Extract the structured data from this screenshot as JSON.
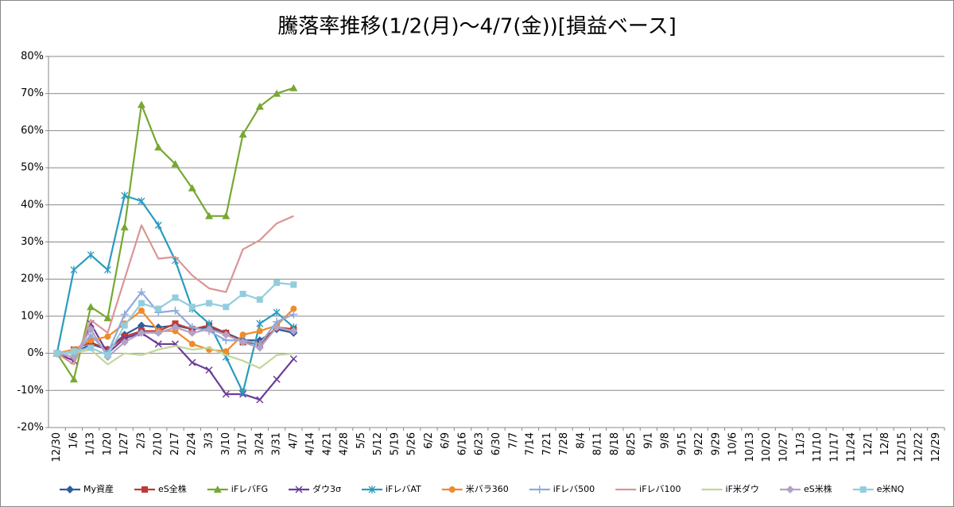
{
  "chart_data": {
    "type": "line",
    "title": "騰落率推移(1/2(月)～4/7(金))[損益ベース]",
    "categories": [
      "12/30",
      "1/6",
      "1/13",
      "1/20",
      "1/27",
      "2/3",
      "2/10",
      "2/17",
      "2/24",
      "3/3",
      "3/10",
      "3/17",
      "3/24",
      "3/31",
      "4/7",
      "4/14",
      "4/21",
      "4/28",
      "5/5",
      "5/12",
      "5/19",
      "5/26",
      "6/2",
      "6/9",
      "6/16",
      "6/23",
      "6/30",
      "7/7",
      "7/14",
      "7/21",
      "7/28",
      "8/4",
      "8/11",
      "8/18",
      "8/25",
      "9/1",
      "9/8",
      "9/15",
      "9/22",
      "9/29",
      "10/6",
      "10/13",
      "10/20",
      "10/27",
      "11/3",
      "11/10",
      "11/17",
      "11/24",
      "12/1",
      "12/8",
      "12/15",
      "12/22",
      "12/29"
    ],
    "ylim": [
      -20,
      80
    ],
    "yticks": [
      {
        "value": -20,
        "label": "-20%"
      },
      {
        "value": -10,
        "label": "-10%"
      },
      {
        "value": 0,
        "label": "0%"
      },
      {
        "value": 10,
        "label": "10%"
      },
      {
        "value": 20,
        "label": "20%"
      },
      {
        "value": 30,
        "label": "30%"
      },
      {
        "value": 40,
        "label": "40%"
      },
      {
        "value": 50,
        "label": "50%"
      },
      {
        "value": 60,
        "label": "60%"
      },
      {
        "value": 70,
        "label": "70%"
      },
      {
        "value": 80,
        "label": "80%"
      }
    ],
    "grid": true,
    "legend": "bottom",
    "series": [
      {
        "name": "My資産",
        "color": "#2e5c9e",
        "marker": "diamond",
        "values": [
          0,
          0,
          2.5,
          1,
          5,
          7.5,
          7,
          7.5,
          6.5,
          7,
          5.5,
          3.5,
          3.5,
          6.5,
          5.5,
          null,
          null,
          null,
          null,
          null,
          null,
          null,
          null,
          null,
          null,
          null,
          null,
          null,
          null,
          null,
          null,
          null,
          null,
          null,
          null,
          null,
          null,
          null,
          null,
          null,
          null,
          null,
          null,
          null,
          null,
          null,
          null,
          null,
          null,
          null,
          null,
          null,
          null
        ]
      },
      {
        "name": "eS全株",
        "color": "#be3a34",
        "marker": "square",
        "values": [
          0,
          1,
          3,
          1,
          4.5,
          6,
          6,
          8,
          6.5,
          7.5,
          5.5,
          3,
          2.5,
          7,
          6.5,
          null,
          null,
          null,
          null,
          null,
          null,
          null,
          null,
          null,
          null,
          null,
          null,
          null,
          null,
          null,
          null,
          null,
          null,
          null,
          null,
          null,
          null,
          null,
          null,
          null,
          null,
          null,
          null,
          null,
          null,
          null,
          null,
          null,
          null,
          null,
          null,
          null,
          null
        ]
      },
      {
        "name": "iFレバFG",
        "color": "#77a832",
        "marker": "triangle",
        "values": [
          0,
          -7,
          12.5,
          9.5,
          34,
          67,
          55.5,
          51,
          44.5,
          37,
          37,
          59,
          66.5,
          70,
          71.5,
          null,
          null,
          null,
          null,
          null,
          null,
          null,
          null,
          null,
          null,
          null,
          null,
          null,
          null,
          null,
          null,
          null,
          null,
          null,
          null,
          null,
          null,
          null,
          null,
          null,
          null,
          null,
          null,
          null,
          null,
          null,
          null,
          null,
          null,
          null,
          null,
          null,
          null
        ]
      },
      {
        "name": "ダウ3σ",
        "color": "#6b3d99",
        "marker": "x",
        "values": [
          0,
          -2,
          8,
          0,
          4,
          5.5,
          2.5,
          2.5,
          -2.5,
          -4.5,
          -11,
          -11,
          -12.5,
          -7,
          -1.5,
          null,
          null,
          null,
          null,
          null,
          null,
          null,
          null,
          null,
          null,
          null,
          null,
          null,
          null,
          null,
          null,
          null,
          null,
          null,
          null,
          null,
          null,
          null,
          null,
          null,
          null,
          null,
          null,
          null,
          null,
          null,
          null,
          null,
          null,
          null,
          null,
          null,
          null
        ]
      },
      {
        "name": "iFレバAT",
        "color": "#2a9bbd",
        "marker": "asterisk",
        "values": [
          0,
          22.5,
          26.5,
          22.5,
          42.5,
          41,
          34.5,
          25,
          12,
          8,
          -1,
          -10.5,
          8,
          11,
          7,
          null,
          null,
          null,
          null,
          null,
          null,
          null,
          null,
          null,
          null,
          null,
          null,
          null,
          null,
          null,
          null,
          null,
          null,
          null,
          null,
          null,
          null,
          null,
          null,
          null,
          null,
          null,
          null,
          null,
          null,
          null,
          null,
          null,
          null,
          null,
          null,
          null,
          null
        ]
      },
      {
        "name": "米バラ360",
        "color": "#f08a2a",
        "marker": "circle",
        "values": [
          0,
          1,
          3.5,
          4.5,
          8,
          11.5,
          6,
          6,
          2.5,
          1,
          0.5,
          5,
          6,
          7.5,
          12,
          null,
          null,
          null,
          null,
          null,
          null,
          null,
          null,
          null,
          null,
          null,
          null,
          null,
          null,
          null,
          null,
          null,
          null,
          null,
          null,
          null,
          null,
          null,
          null,
          null,
          null,
          null,
          null,
          null,
          null,
          null,
          null,
          null,
          null,
          null,
          null,
          null,
          null
        ]
      },
      {
        "name": "iFレバ500",
        "color": "#8faadc",
        "marker": "plus",
        "values": [
          0,
          -1,
          5,
          0,
          10.5,
          16.5,
          11,
          11.5,
          7,
          6,
          3.5,
          3.5,
          2.5,
          8.5,
          10.5,
          null,
          null,
          null,
          null,
          null,
          null,
          null,
          null,
          null,
          null,
          null,
          null,
          null,
          null,
          null,
          null,
          null,
          null,
          null,
          null,
          null,
          null,
          null,
          null,
          null,
          null,
          null,
          null,
          null,
          null,
          null,
          null,
          null,
          null,
          null,
          null,
          null,
          null
        ]
      },
      {
        "name": "iFレバ100",
        "color": "#d99694",
        "marker": "none",
        "values": [
          0,
          -3,
          9,
          5.5,
          20,
          34.5,
          25.5,
          26,
          21,
          17.5,
          16.5,
          28,
          30.5,
          35,
          37,
          null,
          null,
          null,
          null,
          null,
          null,
          null,
          null,
          null,
          null,
          null,
          null,
          null,
          null,
          null,
          null,
          null,
          null,
          null,
          null,
          null,
          null,
          null,
          null,
          null,
          null,
          null,
          null,
          null,
          null,
          null,
          null,
          null,
          null,
          null,
          null,
          null,
          null
        ]
      },
      {
        "name": "iF米ダウ",
        "color": "#c3d69b",
        "marker": "none",
        "values": [
          0,
          0,
          1,
          -3,
          0,
          -0.5,
          1,
          2,
          1,
          1.5,
          -0.5,
          -2,
          -4,
          -0.5,
          0,
          null,
          null,
          null,
          null,
          null,
          null,
          null,
          null,
          null,
          null,
          null,
          null,
          null,
          null,
          null,
          null,
          null,
          null,
          null,
          null,
          null,
          null,
          null,
          null,
          null,
          null,
          null,
          null,
          null,
          null,
          null,
          null,
          null,
          null,
          null,
          null,
          null,
          null
        ]
      },
      {
        "name": "eS米株",
        "color": "#b3a2c7",
        "marker": "diamond",
        "values": [
          0,
          -1,
          6.5,
          -1,
          3,
          5.5,
          5.5,
          7,
          5.5,
          6.5,
          5,
          3,
          1.5,
          7,
          6,
          null,
          null,
          null,
          null,
          null,
          null,
          null,
          null,
          null,
          null,
          null,
          null,
          null,
          null,
          null,
          null,
          null,
          null,
          null,
          null,
          null,
          null,
          null,
          null,
          null,
          null,
          null,
          null,
          null,
          null,
          null,
          null,
          null,
          null,
          null,
          null,
          null,
          null
        ]
      },
      {
        "name": "e米NQ",
        "color": "#93cddd",
        "marker": "square",
        "values": [
          0,
          0.5,
          1.5,
          -0.5,
          7.5,
          13.5,
          12,
          15,
          12.5,
          13.5,
          12.5,
          16,
          14.5,
          19,
          18.5,
          null,
          null,
          null,
          null,
          null,
          null,
          null,
          null,
          null,
          null,
          null,
          null,
          null,
          null,
          null,
          null,
          null,
          null,
          null,
          null,
          null,
          null,
          null,
          null,
          null,
          null,
          null,
          null,
          null,
          null,
          null,
          null,
          null,
          null,
          null,
          null,
          null,
          null
        ]
      }
    ]
  }
}
